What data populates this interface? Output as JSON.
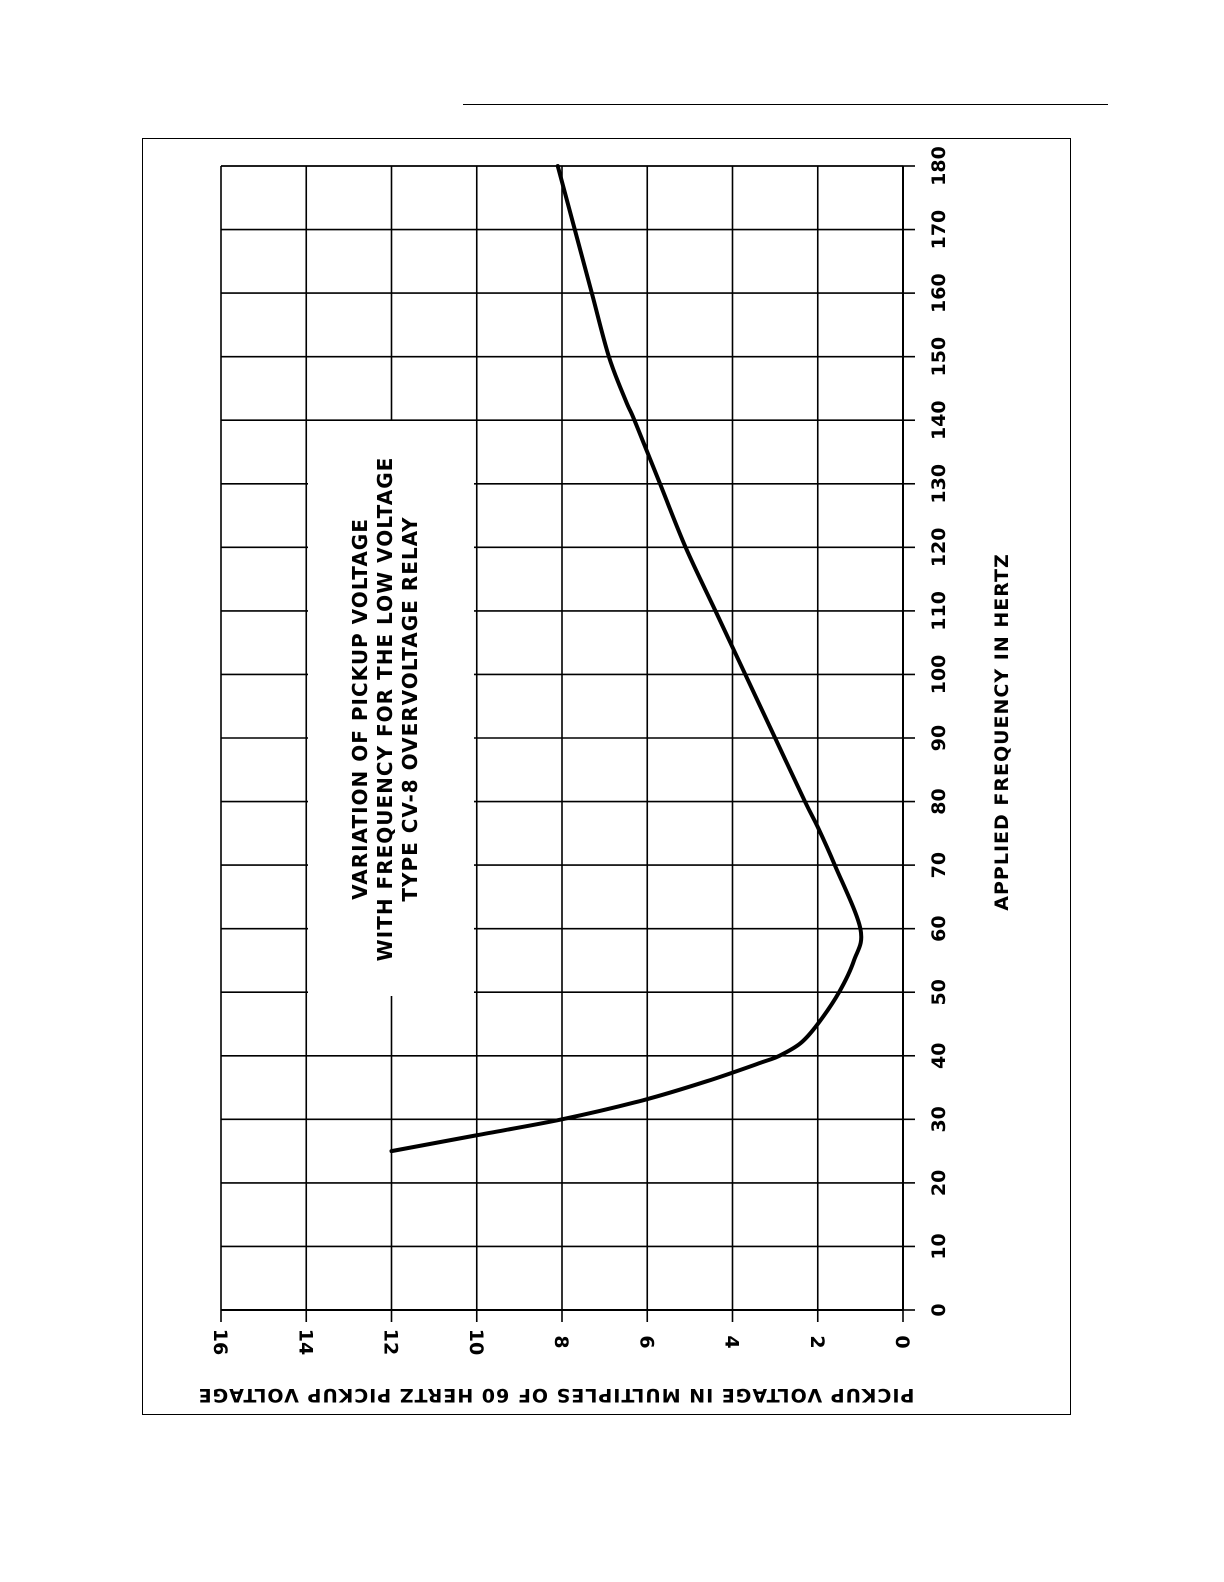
{
  "chart_data": {
    "type": "line",
    "orientation": "rotated 90 degrees clockwise",
    "annotation": [
      "VARIATION OF PICKUP VOLTAGE",
      "WITH FREQUENCY FOR THE LOW VOLTAGE",
      "TYPE CV-8 OVERVOLTAGE RELAY"
    ],
    "xlabel": "APPLIED FREQUENCY IN HERTZ",
    "ylabel": "PICKUP VOLTAGE IN MULTIPLES OF 60 HERTZ PICKUP VOLTAGE",
    "xlim": [
      0,
      180
    ],
    "ylim": [
      0,
      16
    ],
    "x_ticks": [
      "0",
      "10",
      "20",
      "30",
      "40",
      "50",
      "60",
      "70",
      "80",
      "90",
      "100",
      "110",
      "120",
      "130",
      "140",
      "150",
      "160",
      "170",
      "180"
    ],
    "y_ticks": [
      "0",
      "2",
      "4",
      "6",
      "8",
      "10",
      "12",
      "14",
      "16"
    ],
    "grid": true,
    "line_color": "#000000",
    "series": [
      {
        "x": [
          25,
          27.5,
          30,
          33,
          36,
          39,
          40,
          42,
          45,
          50,
          55,
          60,
          70,
          76,
          80,
          90,
          100,
          110,
          120,
          130,
          140,
          143,
          150,
          160,
          170,
          180
        ],
        "y": [
          12,
          10,
          8,
          6.1,
          4.6,
          3.3,
          2.9,
          2.4,
          2.0,
          1.5,
          1.15,
          1.0,
          1.6,
          2.0,
          2.3,
          3.0,
          3.7,
          4.4,
          5.1,
          5.7,
          6.3,
          6.5,
          6.9,
          7.3,
          7.7,
          8.1
        ]
      }
    ]
  }
}
